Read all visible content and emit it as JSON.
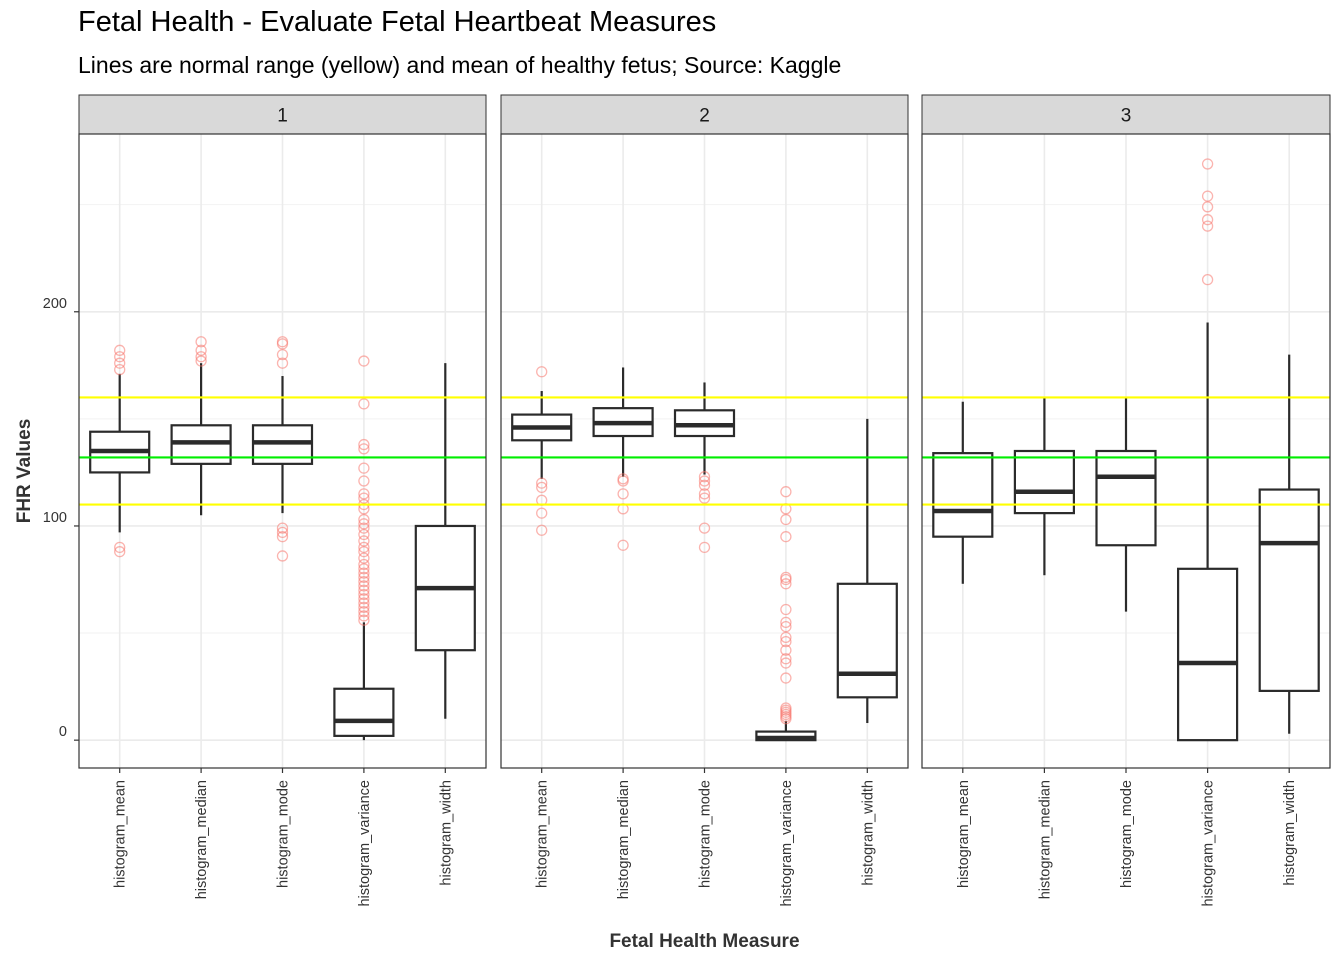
{
  "title": "Fetal Health - Evaluate Fetal Heartbeat Measures",
  "subtitle": "Lines are normal range (yellow) and mean of healthy fetus; Source: Kaggle",
  "chart_data": {
    "type": "boxplot",
    "xlabel": "Fetal Health Measure",
    "ylabel": "FHR Values",
    "ylim": [
      -13,
      283
    ],
    "yticks": [
      0,
      100,
      200
    ],
    "grid": true,
    "categories": [
      "histogram_mean",
      "histogram_median",
      "histogram_mode",
      "histogram_variance",
      "histogram_width"
    ],
    "reference_lines": [
      {
        "value": 160,
        "color": "#ffff00"
      },
      {
        "value": 132,
        "color": "#00ee00"
      },
      {
        "value": 110,
        "color": "#ffff00"
      }
    ],
    "colors": {
      "box": "#2b2b2b",
      "outlier": "#f8766d",
      "strip_fill": "#d9d9d9",
      "panel_border": "#333333",
      "grid": "#ebebeb"
    },
    "facets": [
      {
        "label": "1",
        "boxes": [
          {
            "category": "histogram_mean",
            "min": 97,
            "q1": 125,
            "median": 135,
            "q3": 144,
            "max": 171,
            "outliers": [
              173,
              176,
              179,
              182,
              90,
              88
            ]
          },
          {
            "category": "histogram_median",
            "min": 105,
            "q1": 129,
            "median": 139,
            "q3": 147,
            "max": 176,
            "outliers": [
              177,
              179,
              182,
              186
            ]
          },
          {
            "category": "histogram_mode",
            "min": 106,
            "q1": 129,
            "median": 139,
            "q3": 147,
            "max": 170,
            "outliers": [
              176,
              180,
              185,
              186,
              99,
              97,
              95,
              86
            ]
          },
          {
            "category": "histogram_variance",
            "min": 0,
            "q1": 2,
            "median": 9,
            "q3": 24,
            "max": 55,
            "outliers": [
              56,
              58,
              60,
              62,
              64,
              66,
              68,
              70,
              72,
              74,
              76,
              78,
              80,
              82,
              85,
              88,
              90,
              93,
              96,
              99,
              101,
              103,
              108,
              110,
              113,
              115,
              121,
              127,
              136,
              138,
              157,
              177
            ]
          },
          {
            "category": "histogram_width",
            "min": 10,
            "q1": 42,
            "median": 71,
            "q3": 100,
            "max": 176,
            "outliers": []
          }
        ]
      },
      {
        "label": "2",
        "boxes": [
          {
            "category": "histogram_mean",
            "min": 122,
            "q1": 140,
            "median": 146,
            "q3": 152,
            "max": 163,
            "outliers": [
              172,
              120,
              118,
              112,
              106,
              98
            ]
          },
          {
            "category": "histogram_median",
            "min": 123,
            "q1": 142,
            "median": 148,
            "q3": 155,
            "max": 174,
            "outliers": [
              122,
              121,
              115,
              108,
              91
            ]
          },
          {
            "category": "histogram_mode",
            "min": 124,
            "q1": 142,
            "median": 147,
            "q3": 154,
            "max": 167,
            "outliers": [
              123,
              121,
              119,
              115,
              113,
              99,
              90
            ]
          },
          {
            "category": "histogram_variance",
            "min": 0,
            "q1": 0,
            "median": 1,
            "q3": 4,
            "max": 9,
            "outliers": [
              10,
              11,
              12,
              13,
              14,
              15,
              29,
              36,
              38,
              42,
              46,
              48,
              53,
              55,
              61,
              73,
              75,
              76,
              95,
              103,
              108,
              116
            ]
          },
          {
            "category": "histogram_width",
            "min": 8,
            "q1": 20,
            "median": 31,
            "q3": 73,
            "max": 150,
            "outliers": []
          }
        ]
      },
      {
        "label": "3",
        "boxes": [
          {
            "category": "histogram_mean",
            "min": 73,
            "q1": 95,
            "median": 107,
            "q3": 134,
            "max": 158,
            "outliers": []
          },
          {
            "category": "histogram_median",
            "min": 77,
            "q1": 106,
            "median": 116,
            "q3": 135,
            "max": 160,
            "outliers": []
          },
          {
            "category": "histogram_mode",
            "min": 60,
            "q1": 91,
            "median": 123,
            "q3": 135,
            "max": 160,
            "outliers": []
          },
          {
            "category": "histogram_variance",
            "min": 0,
            "q1": 0,
            "median": 36,
            "q3": 80,
            "max": 195,
            "outliers": [
              215,
              240,
              243,
              249,
              254,
              269
            ]
          },
          {
            "category": "histogram_width",
            "min": 3,
            "q1": 23,
            "median": 92,
            "q3": 117,
            "max": 180,
            "outliers": []
          }
        ]
      }
    ]
  }
}
